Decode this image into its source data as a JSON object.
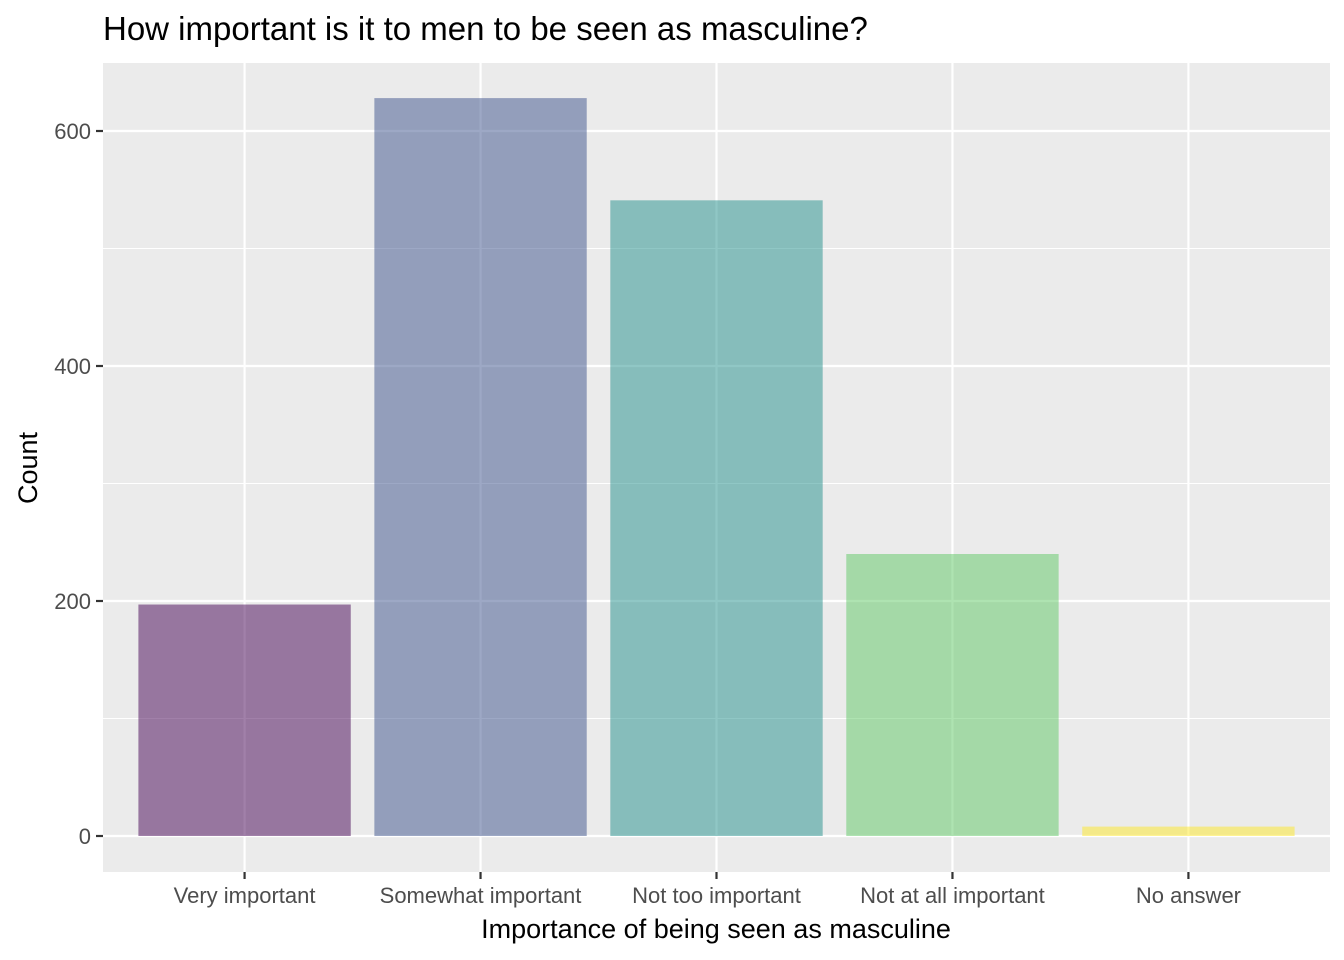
{
  "chart_data": {
    "type": "bar",
    "title": "How important is it to men to be seen as masculine?",
    "xlabel": "Importance of being seen as masculine",
    "ylabel": "Count",
    "categories": [
      "Very important",
      "Somewhat important",
      "Not too important",
      "Not at all important",
      "No answer"
    ],
    "values": [
      197,
      628,
      541,
      240,
      8
    ],
    "colors": [
      "#440154",
      "#3B528B",
      "#21908C",
      "#5DC863",
      "#FDE725"
    ],
    "bar_opacity": 0.5,
    "ylim": [
      -30,
      650
    ],
    "yticks": [
      0,
      200,
      400,
      600
    ],
    "ytick_labels": [
      "0",
      "200",
      "400",
      "600"
    ],
    "grid": true,
    "legend": "none",
    "panel_background": "#EBEBEB",
    "grid_color": "#FFFFFF"
  }
}
